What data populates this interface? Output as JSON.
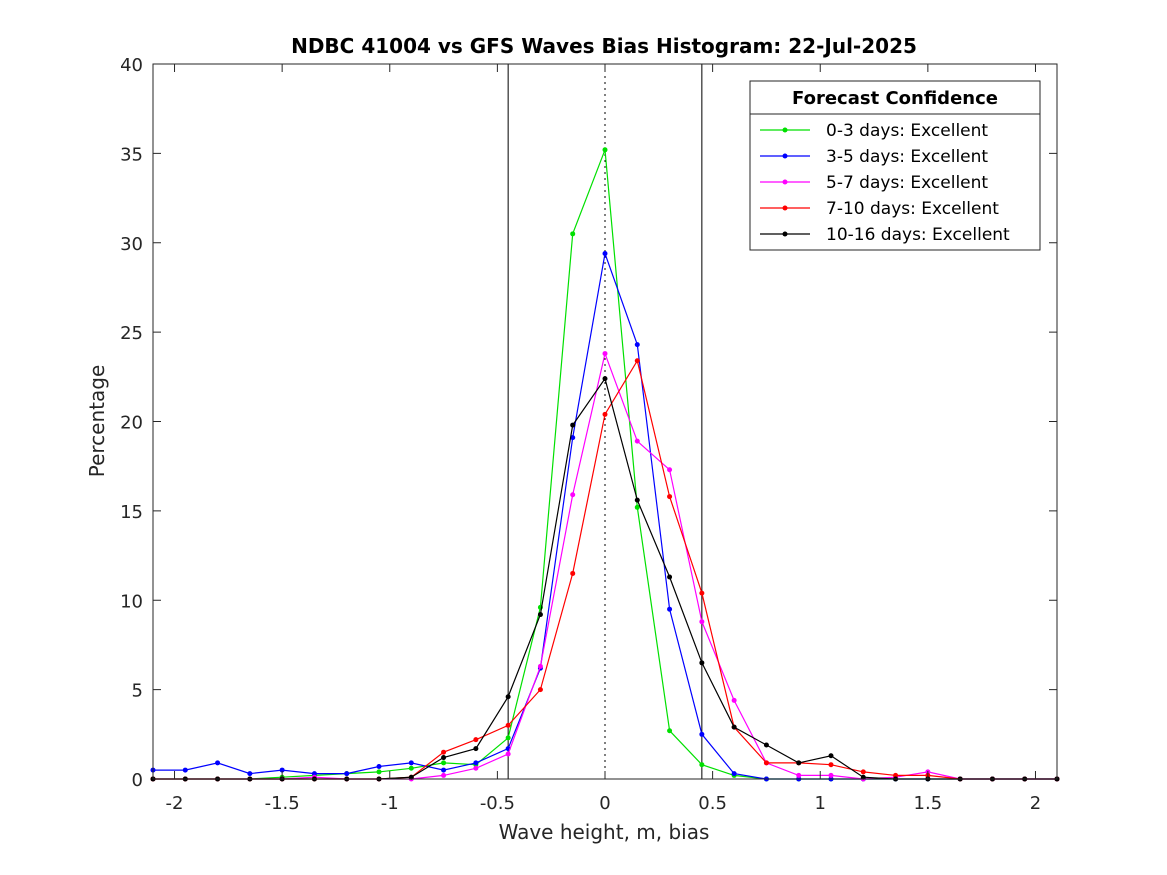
{
  "chart_data": {
    "type": "line",
    "title": "NDBC 41004 vs GFS Waves Bias Histogram: 22-Jul-2025",
    "xlabel": "Wave height, m, bias",
    "ylabel": "Percentage",
    "xlim": [
      -2.1,
      2.1
    ],
    "ylim": [
      0,
      40
    ],
    "xticks": [
      -2,
      -1.5,
      -1,
      -0.5,
      0,
      0.5,
      1,
      1.5,
      2
    ],
    "xtick_labels": [
      "-2",
      "-1.5",
      "-1",
      "-0.5",
      "0",
      "0.5",
      "1",
      "1.5",
      "2"
    ],
    "yticks": [
      0,
      5,
      10,
      15,
      20,
      25,
      30,
      35,
      40
    ],
    "ytick_labels": [
      "0",
      "5",
      "10",
      "15",
      "20",
      "25",
      "30",
      "35",
      "40"
    ],
    "grid": false,
    "legend": {
      "title": "Forecast Confidence",
      "position": "top-right"
    },
    "reference_lines": [
      {
        "x": -0.45,
        "style": "solid",
        "color": "#000000"
      },
      {
        "x": 0,
        "style": "dotted",
        "color": "#000000"
      },
      {
        "x": 0.45,
        "style": "solid",
        "color": "#000000"
      }
    ],
    "x": [
      -2.1,
      -1.95,
      -1.8,
      -1.65,
      -1.5,
      -1.35,
      -1.2,
      -1.05,
      -0.9,
      -0.75,
      -0.6,
      -0.45,
      -0.3,
      -0.15,
      0,
      0.15,
      0.3,
      0.45,
      0.6,
      0.75,
      0.9,
      1.05,
      1.2,
      1.35,
      1.5,
      1.65,
      1.8,
      1.95,
      2.1
    ],
    "series": [
      {
        "name": "0-3 days: Excellent",
        "color": "#00e000",
        "values": [
          0,
          0,
          0,
          0,
          0.1,
          0.2,
          0.3,
          0.4,
          0.6,
          0.9,
          0.8,
          2.3,
          9.6,
          30.5,
          35.2,
          15.2,
          2.7,
          0.8,
          0.2,
          0,
          0,
          0,
          0,
          0,
          0,
          0,
          0,
          0,
          0
        ]
      },
      {
        "name": "3-5 days: Excellent",
        "color": "#0000ff",
        "values": [
          0.5,
          0.5,
          0.9,
          0.3,
          0.5,
          0.3,
          0.3,
          0.7,
          0.9,
          0.5,
          0.9,
          1.7,
          6.2,
          19.1,
          29.4,
          24.3,
          9.5,
          2.5,
          0.3,
          0,
          0,
          0,
          0,
          0,
          0,
          0,
          0,
          0,
          0
        ]
      },
      {
        "name": "5-7 days: Excellent",
        "color": "#ff00ff",
        "values": [
          0,
          0,
          0,
          0,
          0,
          0.1,
          0,
          0,
          0,
          0.2,
          0.6,
          1.4,
          6.3,
          15.9,
          23.8,
          18.9,
          17.3,
          8.8,
          4.4,
          0.9,
          0.2,
          0.2,
          0,
          0.1,
          0.4,
          0,
          0,
          0,
          0
        ]
      },
      {
        "name": "7-10 days: Excellent",
        "color": "#ff0000",
        "values": [
          0,
          0,
          0,
          0,
          0,
          0,
          0,
          0,
          0.1,
          1.5,
          2.2,
          3.0,
          5.0,
          11.5,
          20.4,
          23.4,
          15.8,
          10.4,
          2.9,
          0.9,
          0.9,
          0.8,
          0.4,
          0.2,
          0.2,
          0,
          0,
          0,
          0
        ]
      },
      {
        "name": "10-16 days: Excellent",
        "color": "#000000",
        "values": [
          0,
          0,
          0,
          0,
          0,
          0,
          0,
          0,
          0.1,
          1.2,
          1.7,
          4.6,
          9.2,
          19.8,
          22.4,
          15.6,
          11.3,
          6.5,
          2.9,
          1.9,
          0.9,
          1.3,
          0.1,
          0,
          0,
          0,
          0,
          0,
          0
        ]
      }
    ]
  }
}
